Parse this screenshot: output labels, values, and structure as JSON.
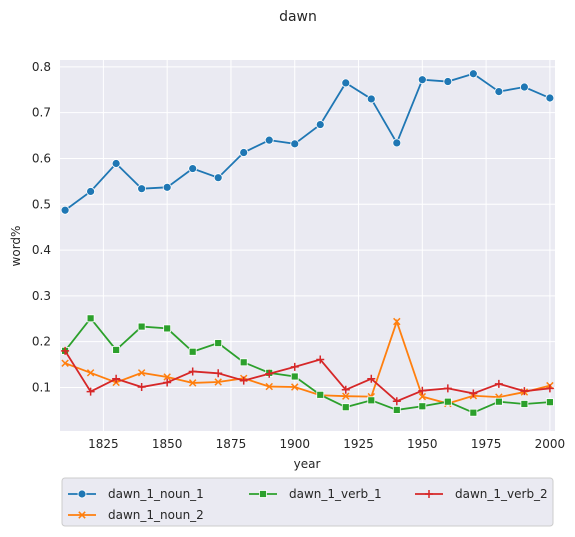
{
  "chart_data": {
    "type": "line",
    "title": "dawn",
    "xlabel": "year",
    "ylabel": "word%",
    "xlim": [
      1808,
      2002
    ],
    "ylim": [
      0.005,
      0.815
    ],
    "x_ticks": [
      1825,
      1850,
      1875,
      1900,
      1925,
      1950,
      1975,
      2000
    ],
    "y_ticks": [
      0.1,
      0.2,
      0.3,
      0.4,
      0.5,
      0.6,
      0.7,
      0.8
    ],
    "grid": true,
    "legend_position": "below",
    "x": [
      1810,
      1820,
      1830,
      1840,
      1850,
      1860,
      1870,
      1880,
      1890,
      1900,
      1910,
      1920,
      1930,
      1940,
      1950,
      1960,
      1970,
      1980,
      1990,
      2000
    ],
    "series": [
      {
        "name": "dawn_1_noun_1",
        "color": "#1f77b4",
        "marker": "circle",
        "values": [
          0.487,
          0.528,
          0.589,
          0.534,
          0.537,
          0.578,
          0.558,
          0.613,
          0.64,
          0.632,
          0.674,
          0.765,
          0.73,
          0.634,
          0.772,
          0.768,
          0.785,
          0.746,
          0.756,
          0.732
        ]
      },
      {
        "name": "dawn_1_noun_2",
        "color": "#ff7f0e",
        "marker": "x",
        "values": [
          0.153,
          0.132,
          0.111,
          0.132,
          0.123,
          0.11,
          0.112,
          0.12,
          0.102,
          0.101,
          0.083,
          0.081,
          0.08,
          0.244,
          0.08,
          0.065,
          0.082,
          0.079,
          0.09,
          0.104
        ]
      },
      {
        "name": "dawn_1_verb_1",
        "color": "#2ca02c",
        "marker": "square",
        "values": [
          0.18,
          0.251,
          0.182,
          0.233,
          0.229,
          0.178,
          0.197,
          0.155,
          0.132,
          0.124,
          0.084,
          0.057,
          0.072,
          0.051,
          0.059,
          0.069,
          0.045,
          0.069,
          0.064,
          0.068
        ]
      },
      {
        "name": "dawn_1_verb_2",
        "color": "#d62728",
        "marker": "plus",
        "values": [
          0.18,
          0.091,
          0.119,
          0.101,
          0.111,
          0.135,
          0.131,
          0.115,
          0.13,
          0.145,
          0.161,
          0.095,
          0.119,
          0.07,
          0.093,
          0.098,
          0.087,
          0.108,
          0.092,
          0.098
        ]
      }
    ]
  }
}
